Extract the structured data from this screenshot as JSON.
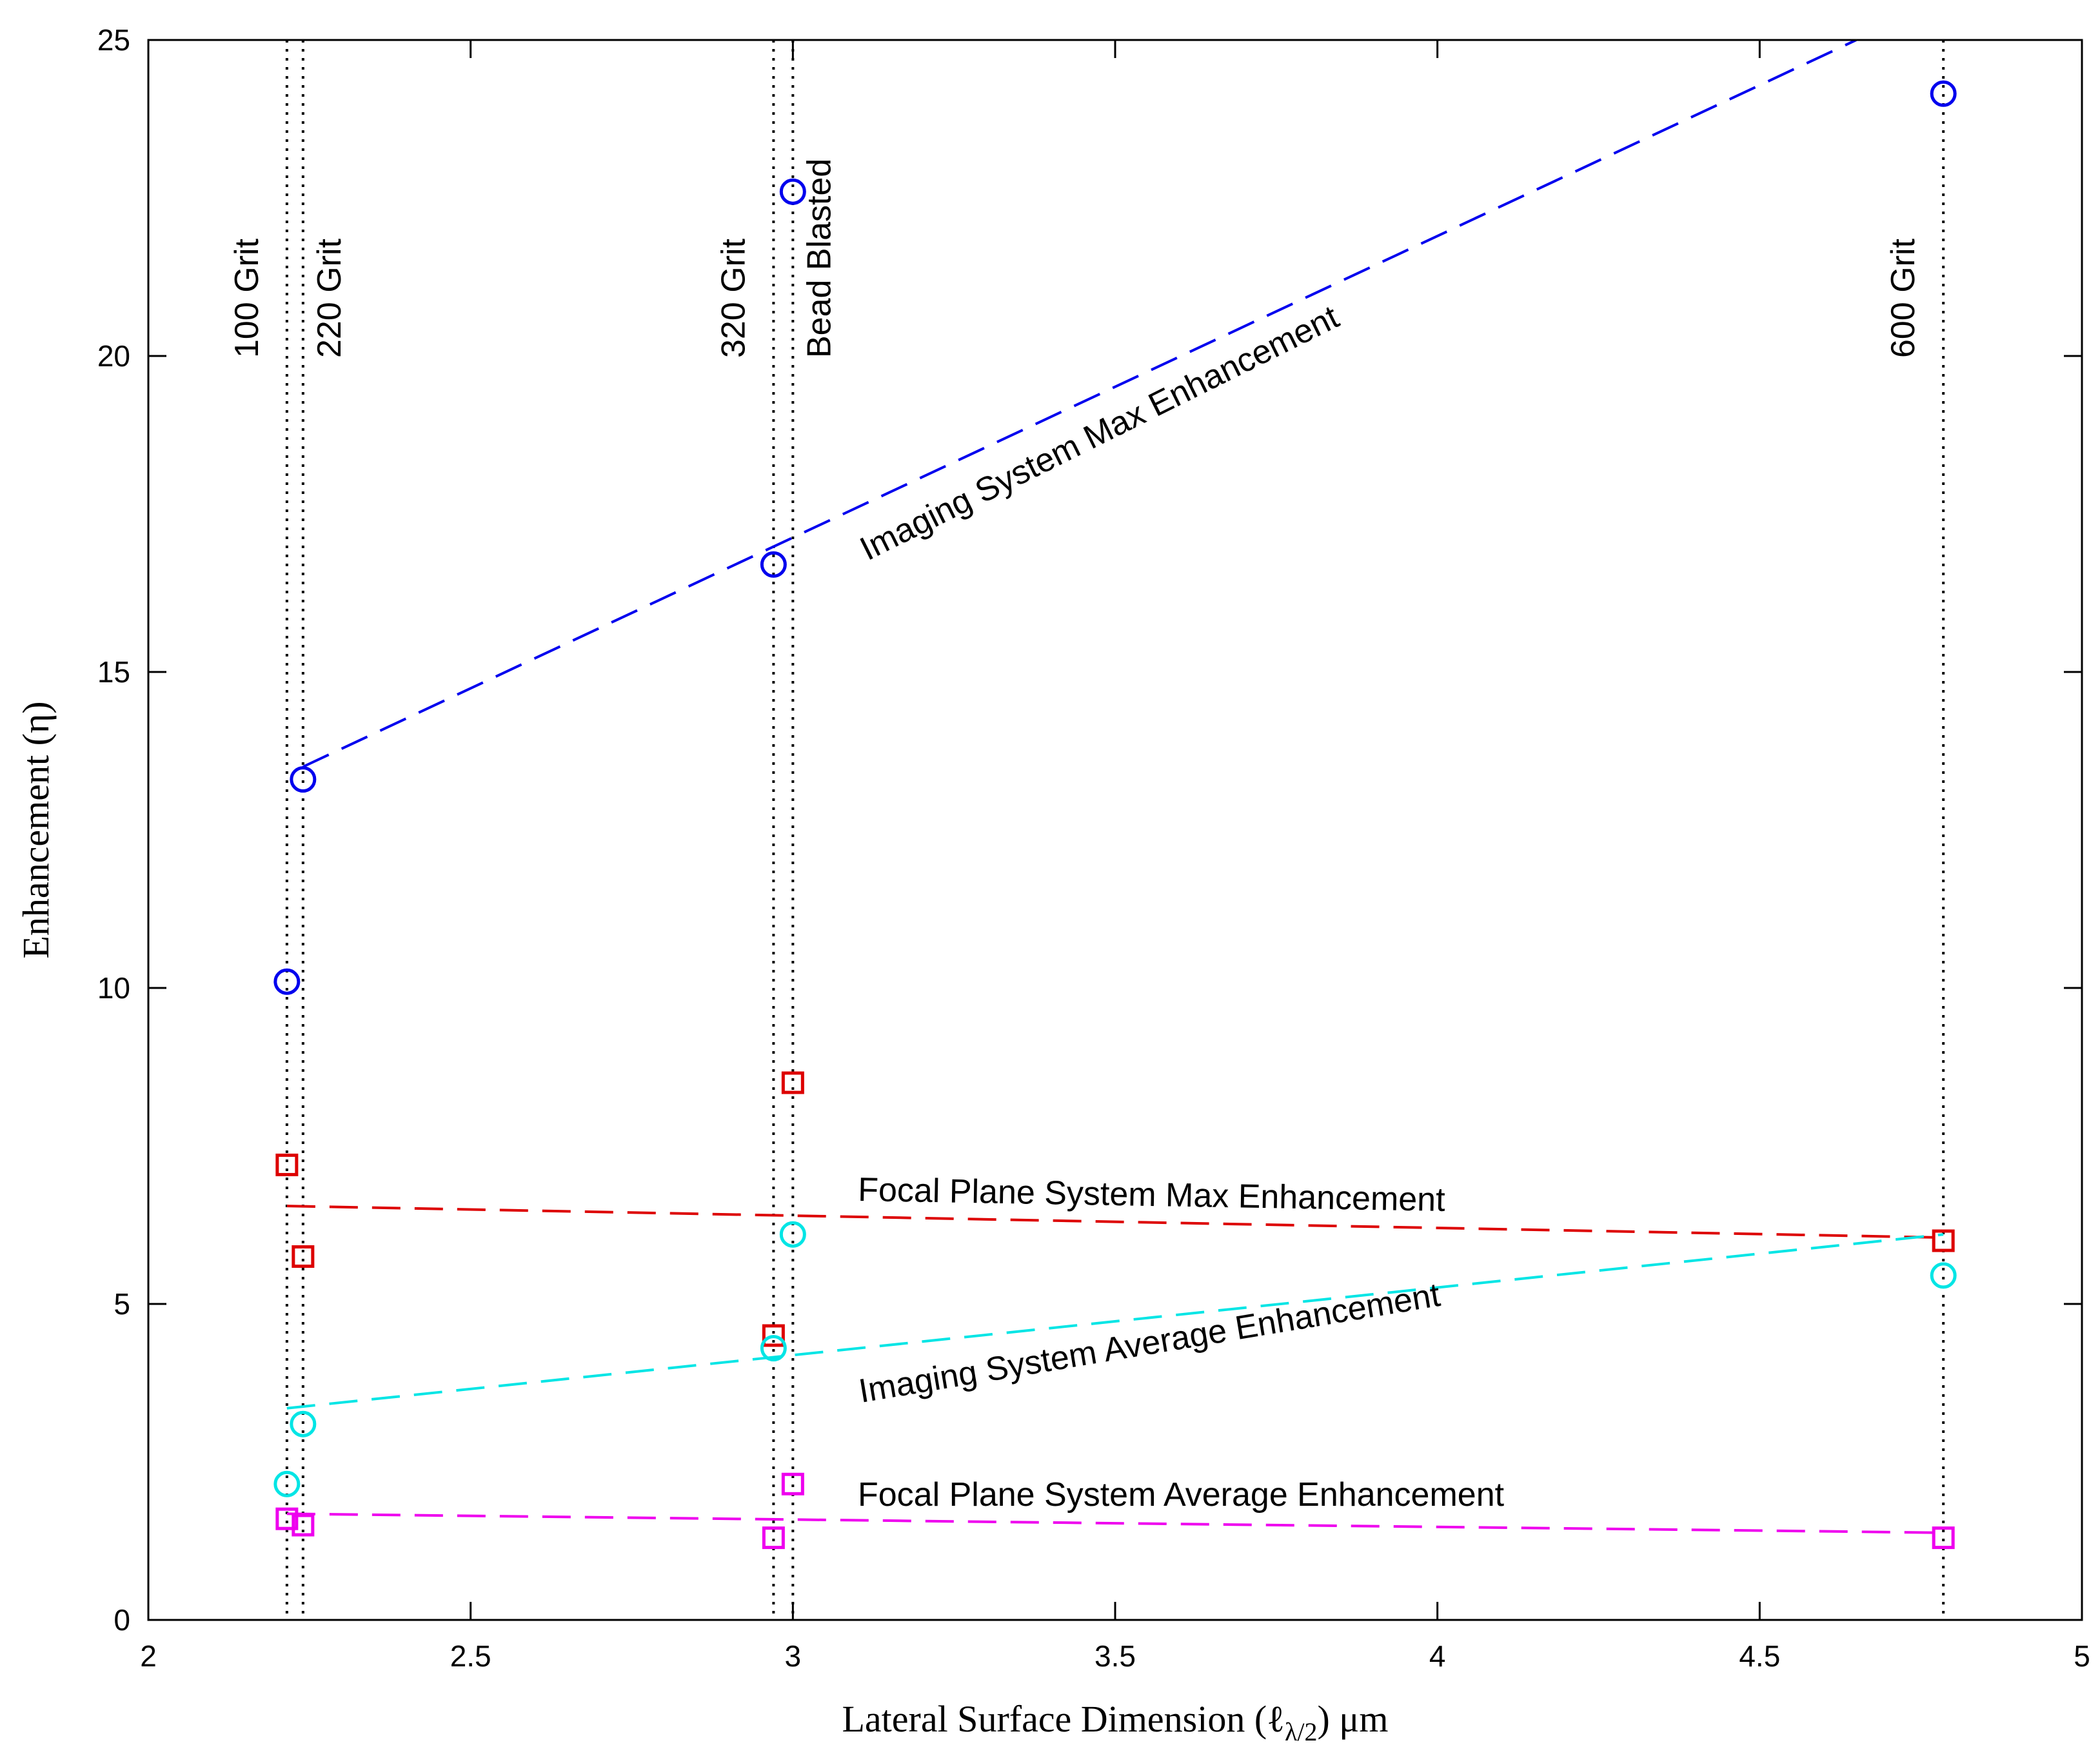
{
  "chart_data": {
    "type": "scatter",
    "title": "",
    "xlabel": "Lateral Surface Dimension (ℓ",
    "xlabel_sub": "λ/2",
    "xlabel_tail": ") μm",
    "ylabel": "Enhancement (η)",
    "xlim": [
      2,
      5
    ],
    "ylim": [
      0,
      25
    ],
    "xticks": [
      2,
      2.5,
      3,
      3.5,
      4,
      4.5,
      5
    ],
    "xtick_labels": [
      "2",
      "2.5",
      "3",
      "3.5",
      "4",
      "4.5",
      "5"
    ],
    "yticks": [
      0,
      5,
      10,
      15,
      20,
      25
    ],
    "ytick_labels": [
      "0",
      "5",
      "10",
      "15",
      "20",
      "25"
    ],
    "grid": false,
    "vertical_lines": [
      {
        "x": 2.215,
        "label": "100 Grit"
      },
      {
        "x": 2.24,
        "label": "220 Grit"
      },
      {
        "x": 2.97,
        "label": "320 Grit"
      },
      {
        "x": 3.0,
        "label": "Bead Blasted"
      },
      {
        "x": 4.785,
        "label": "600 Grit"
      }
    ],
    "series": [
      {
        "name": "Imaging System Max Enhancement",
        "marker": "circle",
        "color": "#0000ee",
        "x": [
          2.215,
          2.24,
          2.97,
          3.0,
          4.785
        ],
        "y": [
          10.1,
          13.3,
          16.7,
          22.6,
          24.15
        ],
        "fit": {
          "x": [
            2.24,
            4.65
          ],
          "y": [
            13.5,
            25.0
          ]
        }
      },
      {
        "name": "Focal Plane System Max Enhancement",
        "marker": "square",
        "color": "#dd0000",
        "x": [
          2.215,
          2.24,
          2.97,
          3.0,
          4.785
        ],
        "y": [
          7.2,
          5.75,
          4.5,
          8.5,
          6.0
        ],
        "fit": {
          "x": [
            2.215,
            4.785
          ],
          "y": [
            6.55,
            6.05
          ]
        }
      },
      {
        "name": "Imaging System Average Enhancement",
        "marker": "circle",
        "color": "#00e5e5",
        "x": [
          2.215,
          2.24,
          2.97,
          3.0,
          4.785
        ],
        "y": [
          2.15,
          3.1,
          4.3,
          6.1,
          5.45
        ],
        "fit": {
          "x": [
            2.215,
            4.785
          ],
          "y": [
            3.35,
            6.1
          ]
        }
      },
      {
        "name": "Focal Plane System Average Enhancement",
        "marker": "square",
        "color": "#ee00ee",
        "x": [
          2.215,
          2.24,
          2.97,
          3.0,
          4.785
        ],
        "y": [
          1.6,
          1.5,
          1.3,
          2.15,
          1.3
        ],
        "fit": {
          "x": [
            2.215,
            4.785
          ],
          "y": [
            1.68,
            1.38
          ]
        }
      }
    ],
    "annotations": [
      {
        "text": "Imaging System Max Enhancement",
        "series": 0
      },
      {
        "text": "Focal Plane System Max Enhancement",
        "series": 1
      },
      {
        "text": "Imaging System Average Enhancement",
        "series": 2
      },
      {
        "text": "Focal Plane System Average Enhancement",
        "series": 3
      }
    ]
  }
}
